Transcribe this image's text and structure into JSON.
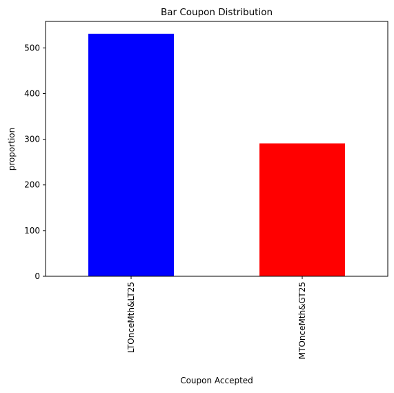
{
  "chart_data": {
    "type": "bar",
    "title": "Bar Coupon Distribution",
    "xlabel": "Coupon Accepted",
    "ylabel": "proportion",
    "categories": [
      "LTOnceMth&LT25",
      "MTOnceMth&GT25"
    ],
    "values": [
      531,
      291
    ],
    "bar_colors": [
      "#0000ff",
      "#ff0000"
    ],
    "ylim": [
      0,
      558
    ],
    "yticks": [
      0,
      100,
      200,
      300,
      400,
      500
    ],
    "grid": false,
    "legend": "none"
  }
}
